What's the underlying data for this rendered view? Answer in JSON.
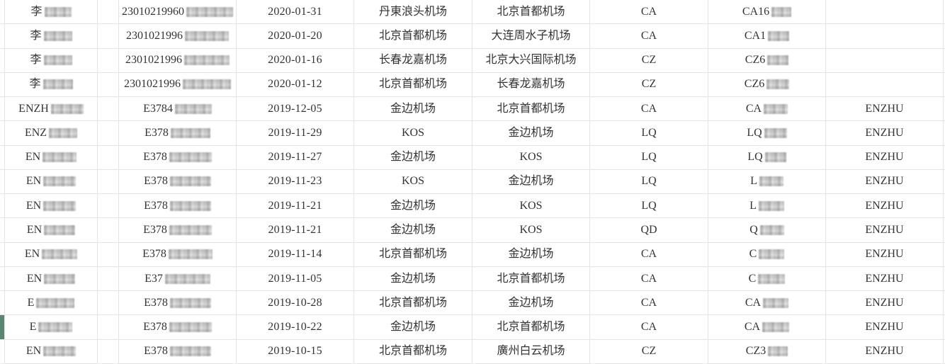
{
  "table": {
    "marker": {
      "row_index": 13,
      "color": "#5b8671"
    },
    "rows": [
      {
        "name": "李",
        "id": "23010219960",
        "date": "2020-01-31",
        "from": "丹東浪头机场",
        "to": "北京首都机场",
        "airline": "CA",
        "flight": "CA16",
        "person": ""
      },
      {
        "name": "李",
        "id": "2301021996",
        "date": "2020-01-20",
        "from": "北京首都机场",
        "to": "大连周水子机场",
        "airline": "CA",
        "flight": "CA1",
        "person": ""
      },
      {
        "name": "李",
        "id": "2301021996",
        "date": "2020-01-16",
        "from": "长春龙嘉机场",
        "to": "北京大兴国际机场",
        "airline": "CZ",
        "flight": "CZ6",
        "person": ""
      },
      {
        "name": "李",
        "id": "2301021996",
        "date": "2020-01-12",
        "from": "北京首都机场",
        "to": "长春龙嘉机场",
        "airline": "CZ",
        "flight": "CZ6",
        "person": ""
      },
      {
        "name": "ENZH",
        "id": "E3784",
        "date": "2019-12-05",
        "from": "金边机场",
        "to": "北京首都机场",
        "airline": "CA",
        "flight": "CA",
        "person": "ENZHU"
      },
      {
        "name": "ENZ",
        "id": "E378",
        "date": "2019-11-29",
        "from": "KOS",
        "to": "金边机场",
        "airline": "LQ",
        "flight": "LQ",
        "person": "ENZHU"
      },
      {
        "name": "EN",
        "id": "E378",
        "date": "2019-11-27",
        "from": "金边机场",
        "to": "KOS",
        "airline": "LQ",
        "flight": "LQ",
        "person": "ENZHU"
      },
      {
        "name": "EN",
        "id": "E378",
        "date": "2019-11-23",
        "from": "KOS",
        "to": "金边机场",
        "airline": "LQ",
        "flight": "L",
        "person": "ENZHU"
      },
      {
        "name": "EN",
        "id": "E378",
        "date": "2019-11-21",
        "from": "金边机场",
        "to": "KOS",
        "airline": "LQ",
        "flight": "L",
        "person": "ENZHU"
      },
      {
        "name": "EN",
        "id": "E378",
        "date": "2019-11-21",
        "from": "金边机场",
        "to": "KOS",
        "airline": "QD",
        "flight": "Q",
        "person": "ENZHU"
      },
      {
        "name": "EN",
        "id": "E378",
        "date": "2019-11-14",
        "from": "北京首都机场",
        "to": "金边机场",
        "airline": "CA",
        "flight": "C",
        "person": "ENZHU"
      },
      {
        "name": "EN",
        "id": "E37",
        "date": "2019-11-05",
        "from": "金边机场",
        "to": "北京首都机场",
        "airline": "CA",
        "flight": "C",
        "person": "ENZHU"
      },
      {
        "name": "E",
        "id": "E378",
        "date": "2019-10-28",
        "from": "北京首都机场",
        "to": "金边机场",
        "airline": "CA",
        "flight": "CA",
        "person": "ENZHU"
      },
      {
        "name": "E",
        "id": "E378",
        "date": "2019-10-22",
        "from": "金边机场",
        "to": "北京首都机场",
        "airline": "CA",
        "flight": "CA",
        "person": "ENZHU"
      },
      {
        "name": "EN",
        "id": "E378",
        "date": "2019-10-15",
        "from": "北京首都机场",
        "to": "廣州白云机场",
        "airline": "CZ",
        "flight": "CZ3",
        "person": "ENZHU"
      }
    ],
    "redacted_columns": [
      "name",
      "id",
      "flight"
    ]
  },
  "colors": {
    "accent_green": "#5b8671",
    "gridline": "#e4e4e4",
    "text": "#333333",
    "background": "#ffffff"
  }
}
